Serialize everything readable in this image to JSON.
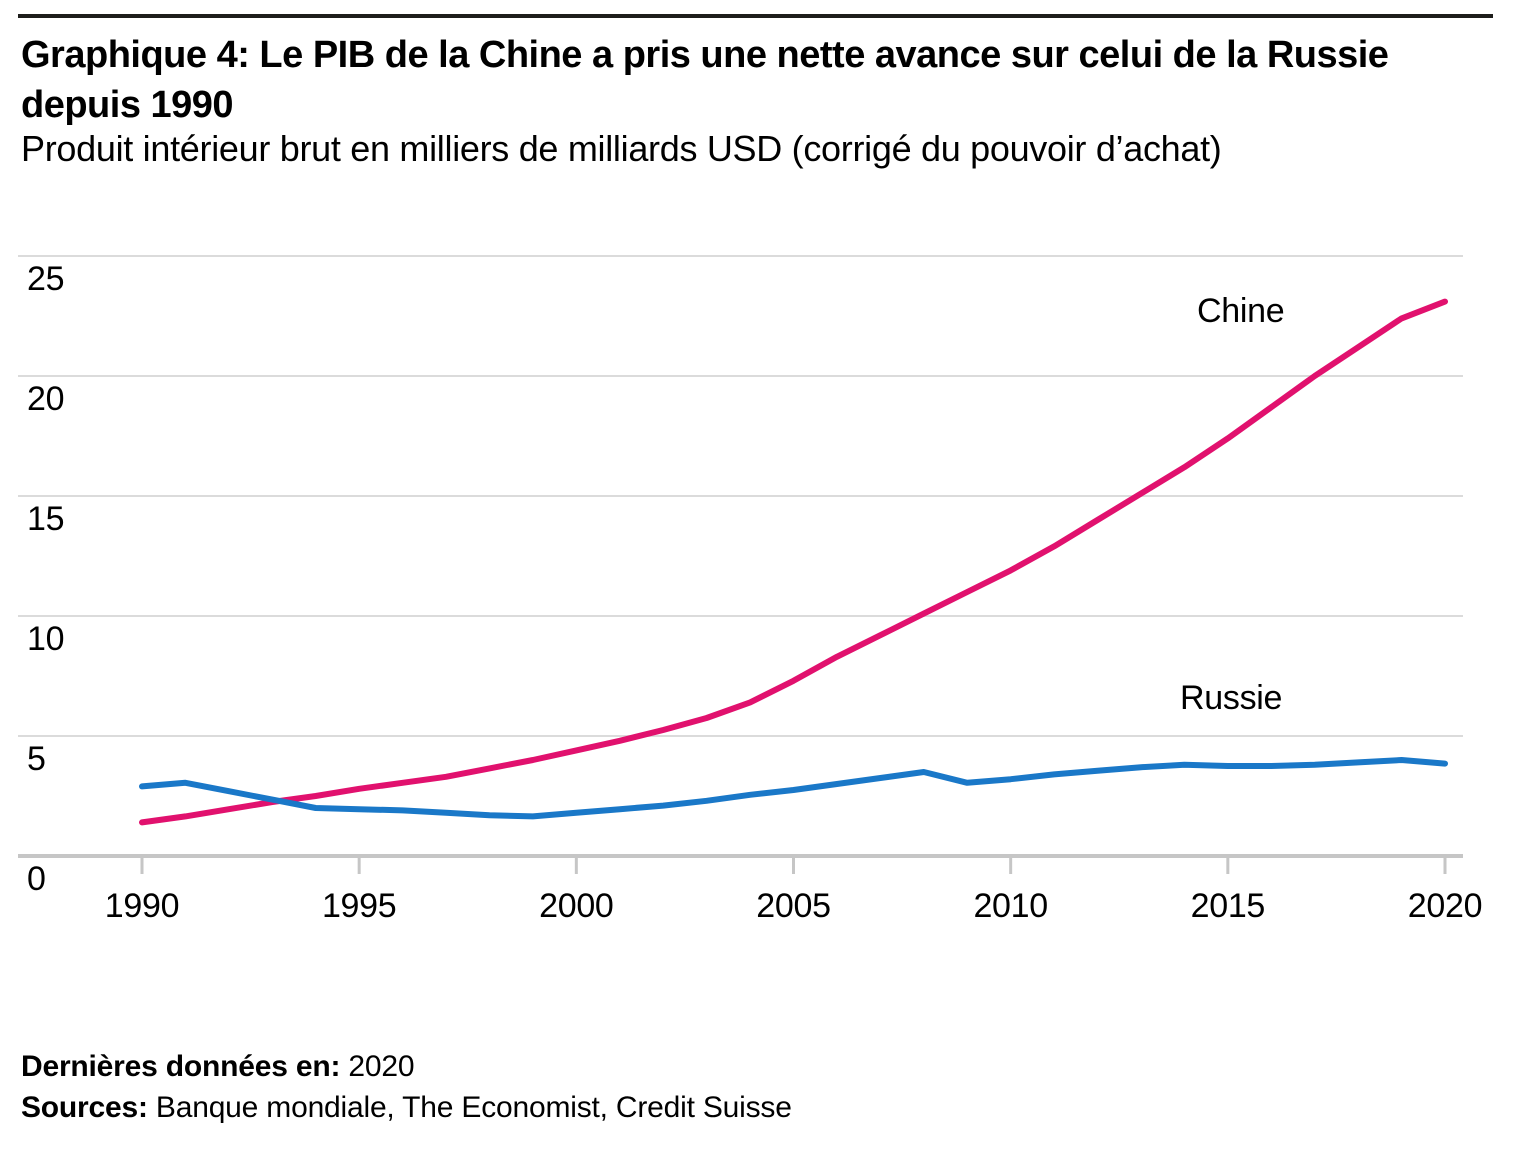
{
  "header": {
    "title_line1": "Graphique 4: Le PIB de la Chine a pris une nette avance sur celui de la Russie",
    "title_line2": "depuis 1990",
    "subtitle": "Produit intérieur brut en milliers de milliards USD (corrigé du pouvoir d’achat)"
  },
  "footer": {
    "last_data_label": "Dernières données en:",
    "last_data_value": "2020",
    "sources_label": "Sources:",
    "sources_value": "Banque mondiale, The Economist, Credit Suisse"
  },
  "colors": {
    "chine_line": "#e1116e",
    "russie_line": "#1a78c8",
    "gridline": "#dbdbdb",
    "axis": "#c6c6c6",
    "top_rule": "#1d1d1b",
    "text": "#000000"
  },
  "chart_data": {
    "type": "line",
    "title": "Graphique 4: Le PIB de la Chine a pris une nette avance sur celui de la Russie depuis 1990",
    "subtitle": "Produit intérieur brut en milliers de milliards USD (corrigé du pouvoir d’achat)",
    "xlabel": "",
    "ylabel": "",
    "xlim": [
      1990,
      2020
    ],
    "ylim": [
      0,
      26
    ],
    "x_ticks": [
      1990,
      1995,
      2000,
      2005,
      2010,
      2015,
      2020
    ],
    "y_ticks": [
      0,
      5,
      10,
      15,
      20,
      25
    ],
    "grid": "horizontal",
    "legend": "inline-labels",
    "x": [
      1990,
      1991,
      1992,
      1993,
      1994,
      1995,
      1996,
      1997,
      1998,
      1999,
      2000,
      2001,
      2002,
      2003,
      2004,
      2005,
      2006,
      2007,
      2008,
      2009,
      2010,
      2011,
      2012,
      2013,
      2014,
      2015,
      2016,
      2017,
      2018,
      2019,
      2020
    ],
    "series": [
      {
        "name": "Chine",
        "color": "#e1116e",
        "values": [
          1.4,
          1.65,
          1.95,
          2.25,
          2.5,
          2.8,
          3.05,
          3.3,
          3.65,
          4.0,
          4.4,
          4.8,
          5.25,
          5.75,
          6.4,
          7.3,
          8.3,
          9.2,
          10.1,
          11.0,
          11.9,
          12.9,
          14.0,
          15.1,
          16.2,
          17.4,
          18.7,
          20.0,
          21.2,
          22.4,
          23.1
        ]
      },
      {
        "name": "Russie",
        "color": "#1a78c8",
        "values": [
          2.9,
          3.05,
          2.7,
          2.35,
          2.0,
          1.95,
          1.9,
          1.8,
          1.7,
          1.65,
          1.8,
          1.95,
          2.1,
          2.3,
          2.55,
          2.75,
          3.0,
          3.25,
          3.5,
          3.05,
          3.2,
          3.4,
          3.55,
          3.7,
          3.8,
          3.75,
          3.75,
          3.8,
          3.9,
          4.0,
          3.85
        ]
      }
    ]
  }
}
